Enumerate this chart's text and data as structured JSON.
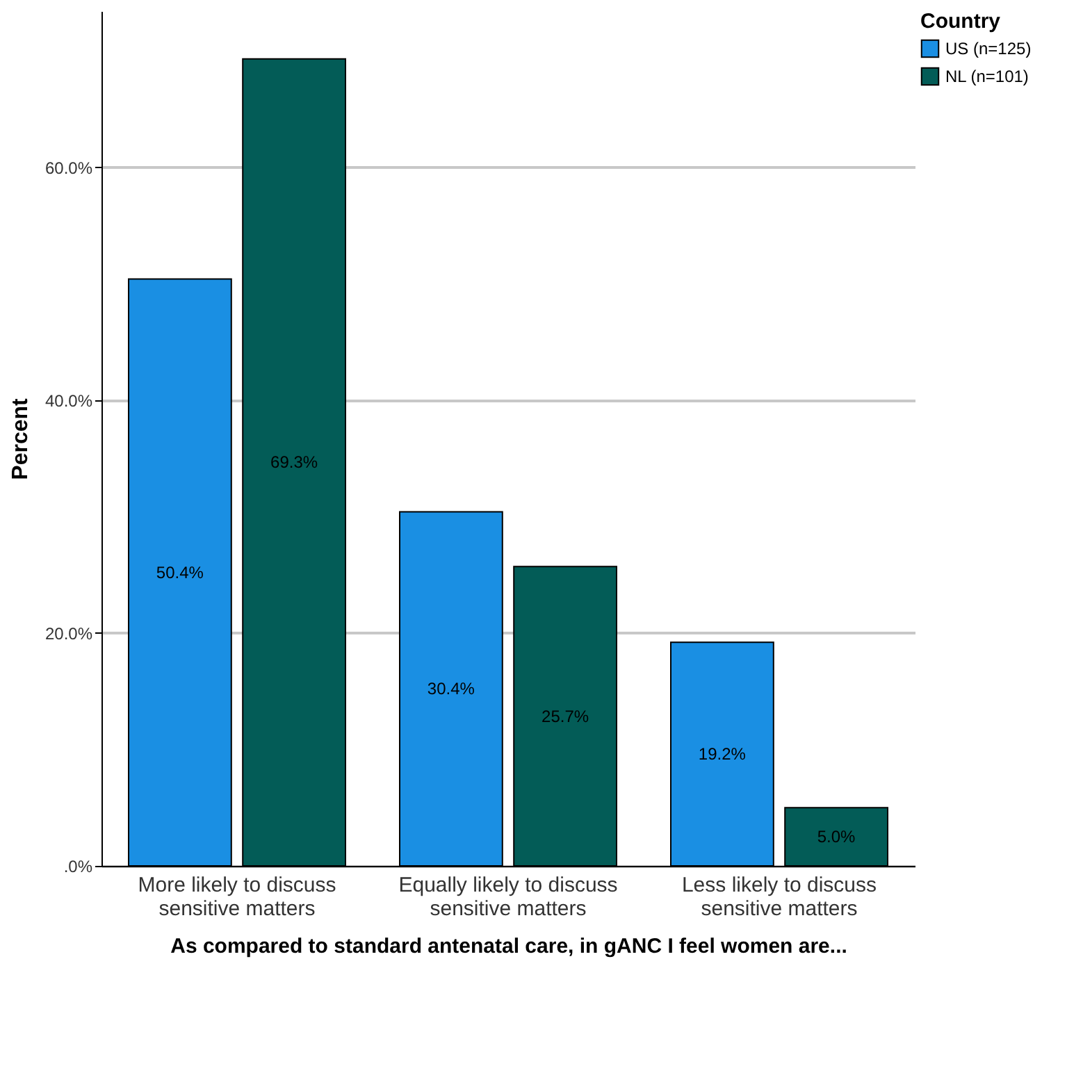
{
  "chart_data": {
    "type": "bar",
    "xlabel": "As compared to standard antenatal care, in gANC I feel women are...",
    "ylabel": "Percent",
    "legend_title": "Country",
    "categories": [
      "More likely to discuss sensitive matters",
      "Equally likely to discuss sensitive matters",
      "Less likely to discuss sensitive matters"
    ],
    "series": [
      {
        "name": "US (n=125)",
        "color": "#1a8fe3",
        "values": [
          50.4,
          30.4,
          19.2
        ],
        "value_labels": [
          "50.4%",
          "30.4%",
          "19.2%"
        ]
      },
      {
        "name": "NL (n=101)",
        "color": "#035c57",
        "values": [
          69.3,
          25.7,
          5.0
        ],
        "value_labels": [
          "69.3%",
          "25.7%",
          "5.0%"
        ]
      }
    ],
    "ylim": [
      0,
      73.4
    ],
    "yticks": [
      {
        "value": 0,
        "label": ".0%"
      },
      {
        "value": 20,
        "label": "20.0%"
      },
      {
        "value": 40,
        "label": "40.0%"
      },
      {
        "value": 60,
        "label": "60.0%"
      }
    ],
    "grid": "y",
    "legend": "top right"
  }
}
